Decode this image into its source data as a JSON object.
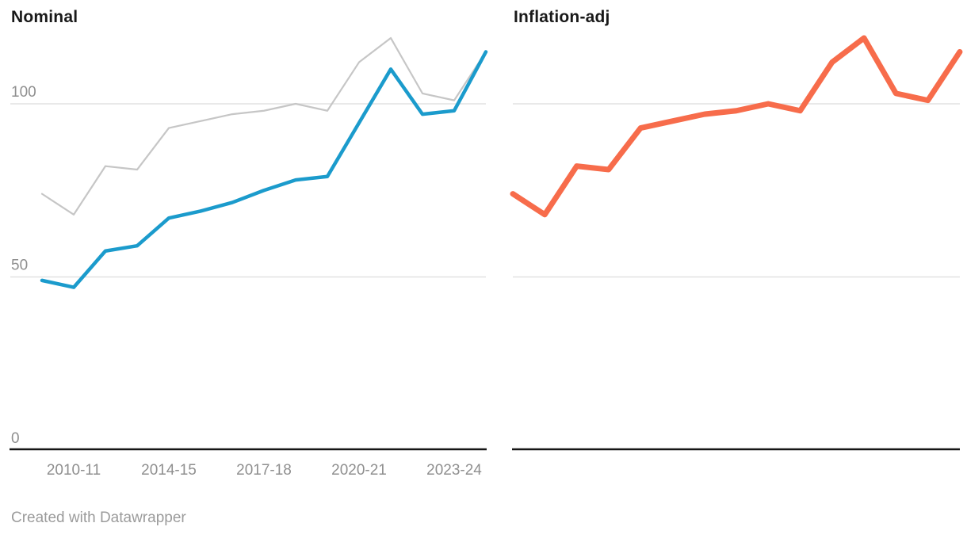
{
  "page": {
    "background": "#ffffff"
  },
  "panels": {
    "left_title": "Nominal",
    "right_title": "Inflation-adj"
  },
  "footer": {
    "attribution": "Created with Datawrapper"
  },
  "colors": {
    "nominal_line": "#1b9bcc",
    "inflation_line": "#f76c4b",
    "context_line": "#c6c6c6",
    "gridline": "#e2e2e2",
    "axis_line": "#151515",
    "tick_label": "#8f8f8f",
    "title_text": "#191919",
    "footer_text": "#9b9b9b"
  },
  "chart_data": [
    {
      "type": "line",
      "panel": "left",
      "title": "Nominal",
      "n_points": 15,
      "ylim": [
        0,
        125
      ],
      "gridlines": [
        100,
        50
      ],
      "y_ticks": [
        {
          "value": 100,
          "label": "100"
        },
        {
          "value": 50,
          "label": "50"
        },
        {
          "value": 0,
          "label": "0"
        }
      ],
      "x_ticks": [
        {
          "index": 1,
          "label": "2010-11"
        },
        {
          "index": 4,
          "label": "2014-15"
        },
        {
          "index": 7,
          "label": "2017-18"
        },
        {
          "index": 10,
          "label": "2020-21"
        },
        {
          "index": 13,
          "label": "2023-24"
        }
      ],
      "series": [
        {
          "name": "Inflation-adj (context)",
          "color": "#c6c6c6",
          "width": 2.2,
          "values": [
            74,
            68,
            82,
            81,
            93,
            95,
            97,
            98,
            100,
            98,
            112,
            119,
            103,
            101,
            115
          ]
        },
        {
          "name": "Nominal",
          "color": "#1b9bcc",
          "width": 4.5,
          "values": [
            49,
            47,
            57.5,
            59,
            67,
            69,
            71.5,
            75,
            78,
            79,
            94.5,
            110,
            97,
            98,
            115
          ]
        }
      ]
    },
    {
      "type": "line",
      "panel": "right",
      "title": "Inflation-adj",
      "n_points": 15,
      "ylim": [
        0,
        125
      ],
      "gridlines": [
        100,
        50
      ],
      "y_ticks": [],
      "x_ticks": [],
      "series": [
        {
          "name": "Inflation-adj",
          "color": "#f76c4b",
          "width": 7,
          "values": [
            74,
            68,
            82,
            81,
            93,
            95,
            97,
            98,
            100,
            98,
            112,
            119,
            103,
            101,
            115
          ]
        }
      ]
    }
  ]
}
